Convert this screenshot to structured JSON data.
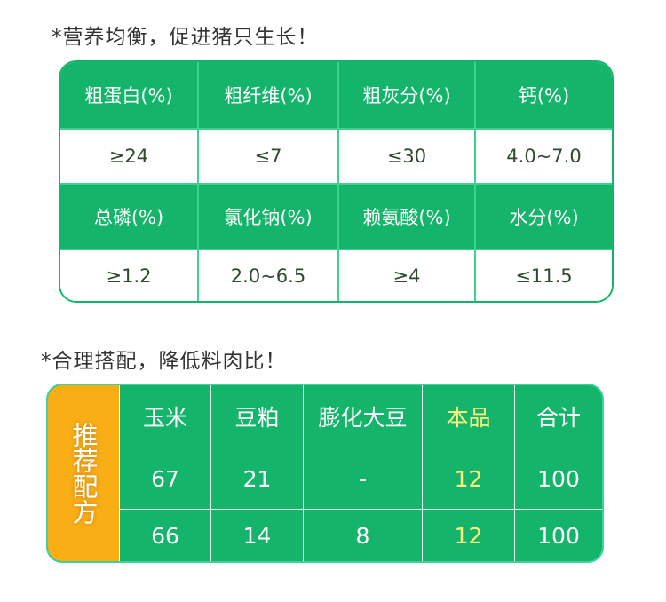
{
  "section1": {
    "title": "*营养均衡，促进猪只生长！",
    "rows": [
      {
        "headers": [
          "粗蛋白(%)",
          "粗纤维(%)",
          "粗灰分(%)",
          "钙(%)"
        ],
        "values": [
          "≥24",
          "≤7",
          "≤30",
          "4.0~7.0"
        ]
      },
      {
        "headers": [
          "总磷(%)",
          "氯化钠(%)",
          "赖氨酸(%)",
          "水分(%)"
        ],
        "values": [
          "≥1.2",
          "2.0~6.5",
          "≥4",
          "≤11.5"
        ]
      }
    ]
  },
  "section2": {
    "title": "*合理搭配，降低料肉比！",
    "side_label": "推荐配方",
    "headers": [
      "玉米",
      "豆粕",
      "膨化大豆",
      "本品",
      "合计"
    ],
    "rows": [
      [
        "67",
        "21",
        "-",
        "12",
        "100"
      ],
      [
        "66",
        "14",
        "8",
        "12",
        "100"
      ]
    ],
    "highlight_color": "#fff27a"
  },
  "colors": {
    "green": "#14b56b",
    "orange": "#f9ae16"
  }
}
